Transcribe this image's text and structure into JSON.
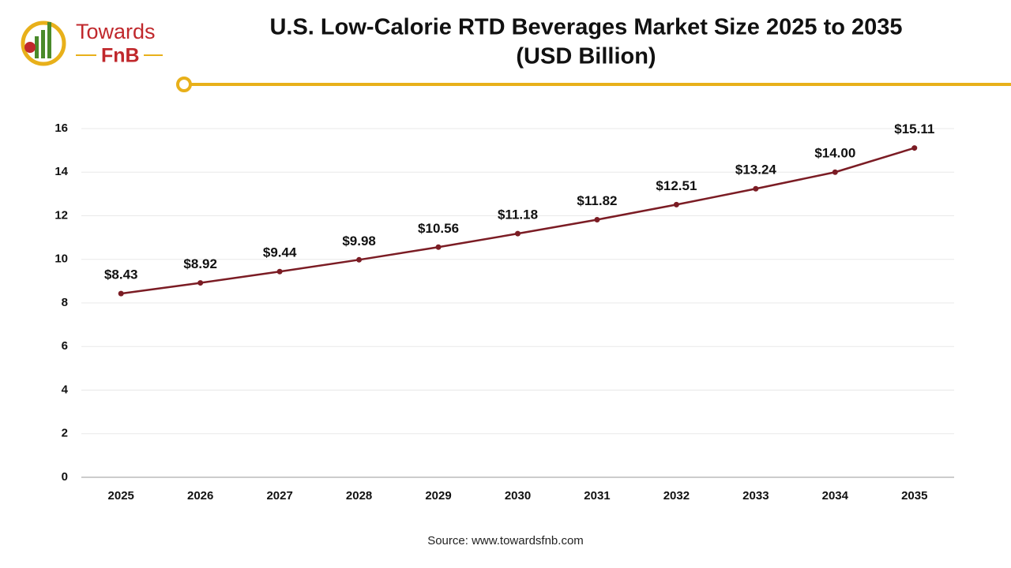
{
  "logo": {
    "line1": "Towards",
    "line2": "FnB"
  },
  "chart_data": {
    "type": "line",
    "title": "U.S. Low-Calorie RTD Beverages Market Size 2025 to 2035",
    "subtitle": "(USD Billion)",
    "categories": [
      "2025",
      "2026",
      "2027",
      "2028",
      "2029",
      "2030",
      "2031",
      "2032",
      "2033",
      "2034",
      "2035"
    ],
    "values": [
      8.43,
      8.92,
      9.44,
      9.98,
      10.56,
      11.18,
      11.82,
      12.51,
      13.24,
      14.0,
      15.11
    ],
    "value_labels": [
      "$8.43",
      "$8.92",
      "$9.44",
      "$9.98",
      "$10.56",
      "$11.18",
      "$11.82",
      "$12.51",
      "$13.24",
      "$14.00",
      "$15.11"
    ],
    "color": "#7b1c24",
    "ylim": [
      0,
      16
    ],
    "yticks": [
      0,
      2,
      4,
      6,
      8,
      10,
      12,
      14,
      16
    ],
    "grid": true,
    "source": "Source: www.towardsfnb.com"
  }
}
